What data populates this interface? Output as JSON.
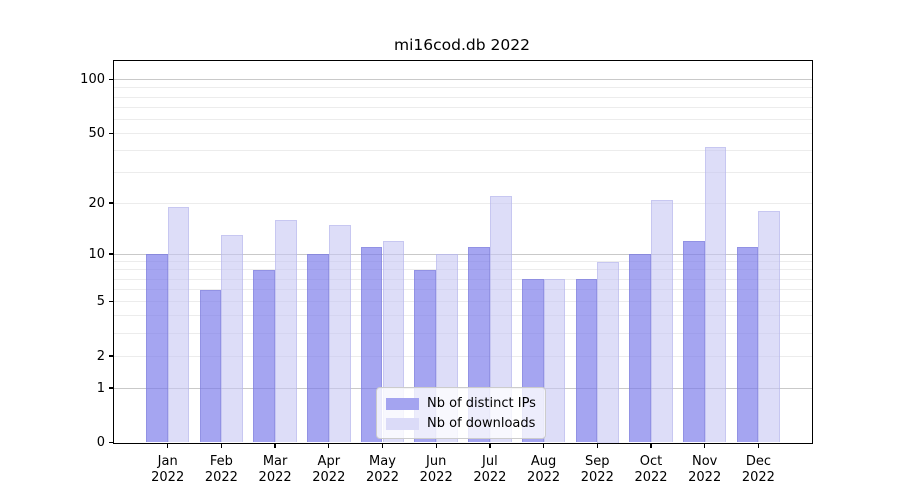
{
  "chart_data": {
    "type": "bar",
    "title": "mi16cod.db 2022",
    "categories": [
      "Jan",
      "Feb",
      "Mar",
      "Apr",
      "May",
      "Jun",
      "Jul",
      "Aug",
      "Sep",
      "Oct",
      "Nov",
      "Dec"
    ],
    "category_year": "2022",
    "series": [
      {
        "name": "Nb of distinct IPs",
        "color": "#a4a4f0",
        "fill": "rgba(118,118,233,0.66)",
        "edge": "rgba(128,128,215,0.5)",
        "values": [
          10,
          6,
          8,
          10,
          11,
          8,
          11,
          7,
          7,
          10,
          12,
          11
        ]
      },
      {
        "name": "Nb of downloads",
        "color": "#dbdbf8",
        "fill": "rgba(198,198,244,0.6)",
        "edge": "rgba(172,172,232,0.45)",
        "values": [
          19,
          13,
          16,
          15,
          12,
          10,
          22,
          7,
          9,
          21,
          42,
          18
        ]
      }
    ],
    "xlabel": "",
    "ylabel": "",
    "y_axis": {
      "scale": "log10(value+1)",
      "tick_values": [
        0,
        1,
        2,
        5,
        10,
        20,
        50,
        100
      ],
      "major_gridlines": [
        1,
        10,
        100
      ],
      "minor_gridlines": [
        2,
        3,
        4,
        5,
        6,
        7,
        8,
        9,
        20,
        30,
        40,
        50,
        60,
        70,
        80,
        90
      ],
      "ylim": [
        0,
        127
      ]
    },
    "legend": {
      "position": "lower-center"
    },
    "grid": true,
    "colors": {
      "major_grid": "#c9c9c9",
      "minor_grid": "#ececec",
      "spine": "#000000",
      "background": "#ffffff"
    }
  }
}
